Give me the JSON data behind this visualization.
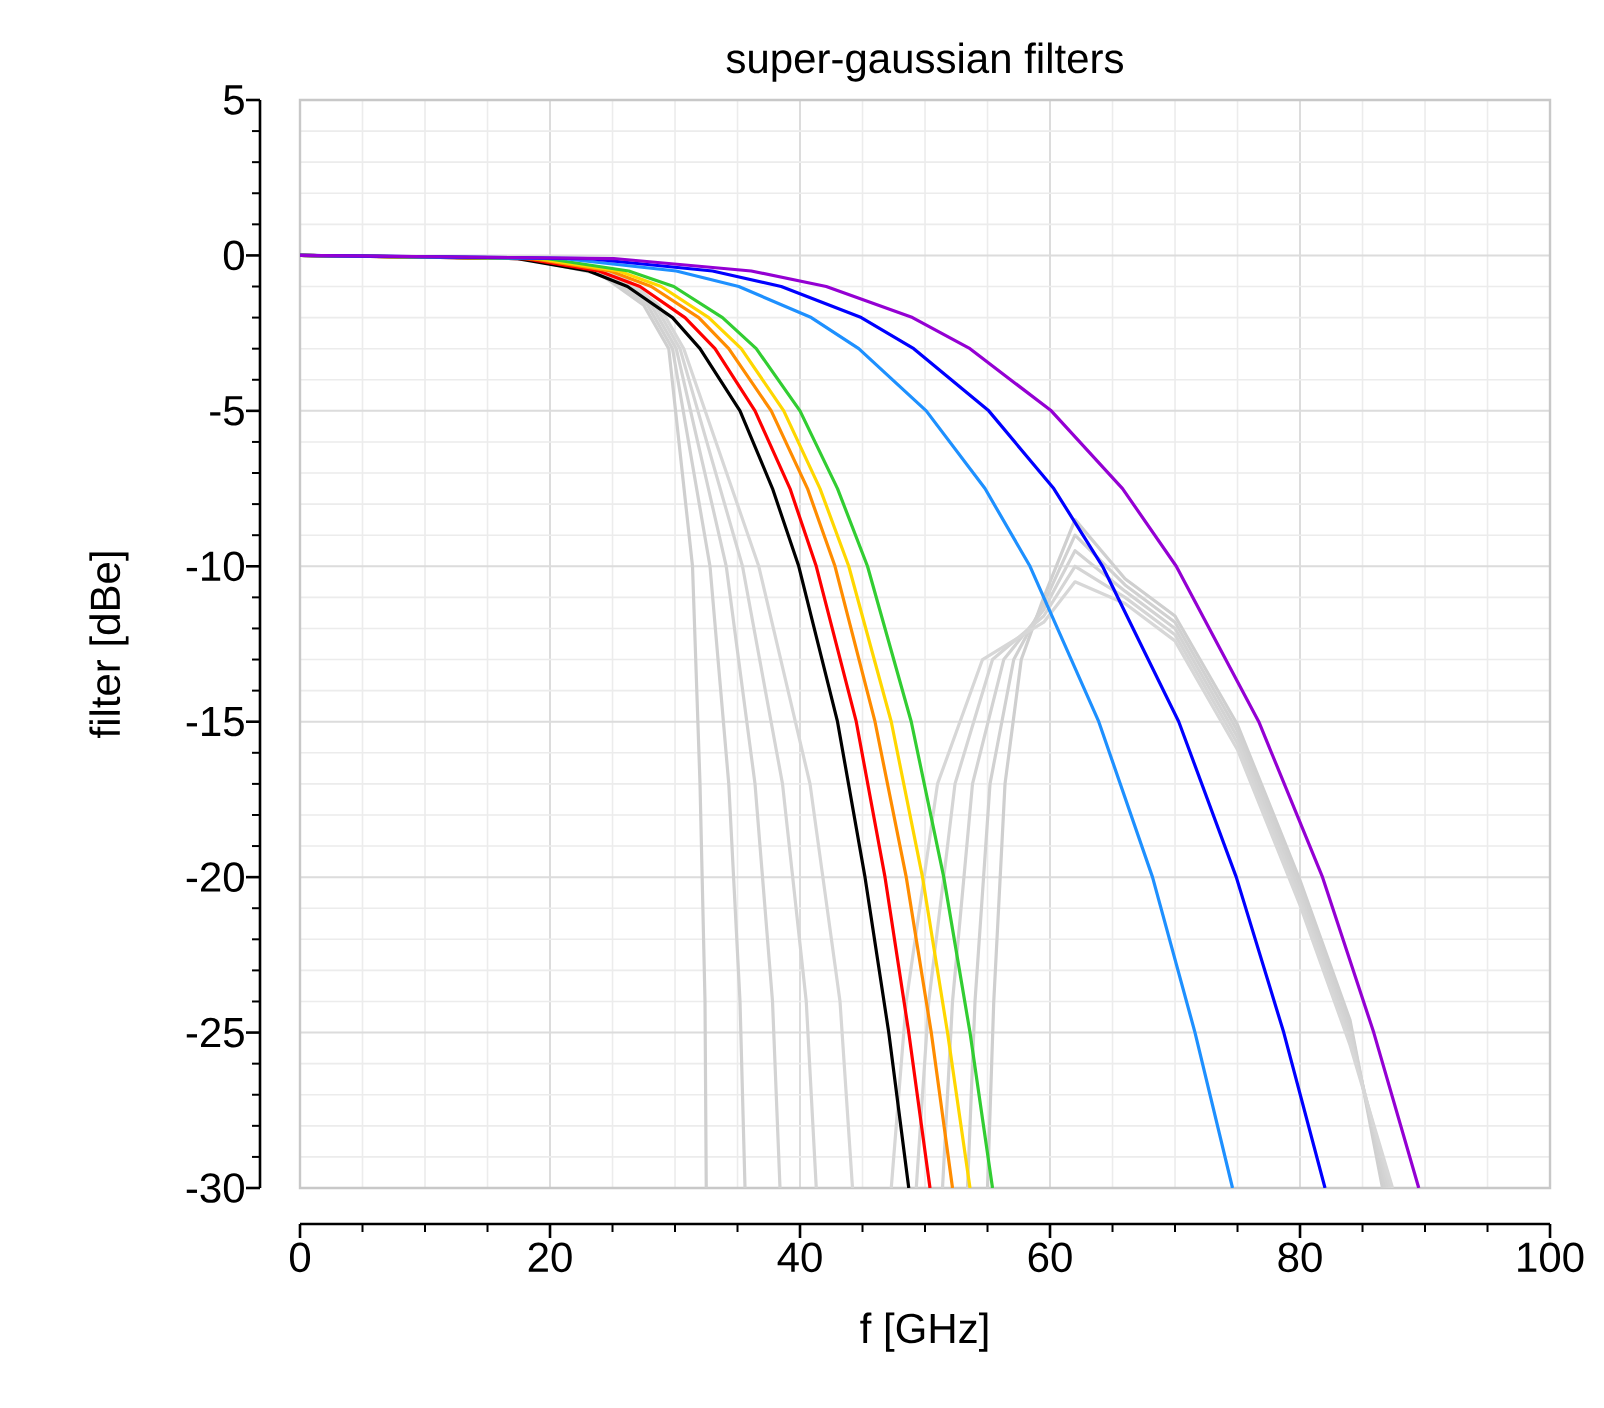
{
  "chart_data": {
    "type": "line",
    "title": "super-gaussian filters",
    "xlabel": "f [GHz]",
    "ylabel": "filter [dBe]",
    "xlim": [
      0,
      100
    ],
    "ylim": [
      -30,
      5
    ],
    "xticks": [
      0,
      20,
      40,
      60,
      80,
      100
    ],
    "yticks": [
      -30,
      -25,
      -20,
      -15,
      -10,
      -5,
      0,
      5
    ],
    "grid": true,
    "line_style": "solid",
    "marker": "none",
    "series": [
      {
        "color": "#cfcfcf",
        "x": [
          0,
          18,
          24,
          27.5,
          29.5,
          31.4,
          32.0,
          32.4,
          32.5,
          44,
          55.0,
          55.5,
          56.4,
          57.7,
          59.5,
          62,
          66,
          70,
          75,
          80,
          84,
          86.6
        ],
        "values": [
          0,
          -0.1,
          -0.6,
          -1.6,
          -3,
          -10,
          -17,
          -24,
          -30,
          null,
          -30,
          -24,
          -17,
          -13,
          -11,
          -8.5,
          -10.4,
          -11.6,
          -15.1,
          -20.1,
          -24.6,
          -30
        ]
      },
      {
        "color": "#d1d1d1",
        "x": [
          0,
          18.5,
          24.4,
          27.8,
          29.8,
          32.8,
          34.3,
          35.2,
          35.6,
          44,
          53.4,
          54.0,
          55.2,
          57.1,
          59.5,
          62,
          66,
          70,
          75,
          80,
          84,
          86.8
        ],
        "values": [
          0,
          -0.1,
          -0.6,
          -1.6,
          -3,
          -10,
          -17,
          -24,
          -30,
          null,
          -30,
          -24,
          -17,
          -13,
          -11.2,
          -9,
          -10.6,
          -11.8,
          -15.3,
          -20.3,
          -24.8,
          -30
        ]
      },
      {
        "color": "#d3d3d3",
        "x": [
          0,
          19,
          24.8,
          28.1,
          30.1,
          34.1,
          36.4,
          37.8,
          38.4,
          44,
          51.4,
          52.2,
          53.8,
          56.3,
          59.5,
          62,
          66,
          70,
          75,
          80,
          84,
          87
        ],
        "values": [
          0,
          -0.1,
          -0.6,
          -1.6,
          -3,
          -10,
          -17,
          -24,
          -30,
          null,
          -30,
          -24,
          -17,
          -13,
          -11.4,
          -9.5,
          -10.8,
          -12,
          -15.5,
          -20.5,
          -25,
          -30
        ]
      },
      {
        "color": "#d5d5d5",
        "x": [
          0,
          19.5,
          25.2,
          28.4,
          30.4,
          35.4,
          38.6,
          40.5,
          41.3,
          45,
          49.3,
          50.3,
          52.4,
          55.4,
          59.5,
          62,
          66,
          70,
          75,
          80,
          84,
          87.2
        ],
        "values": [
          0,
          -0.1,
          -0.6,
          -1.6,
          -3,
          -10,
          -17,
          -24,
          -30,
          null,
          -30,
          -24,
          -17,
          -13,
          -11.6,
          -10,
          -11,
          -12.2,
          -15.7,
          -20.7,
          -25.2,
          -30
        ]
      },
      {
        "color": "#d7d7d7",
        "x": [
          0,
          20,
          25.6,
          28.7,
          30.7,
          36.7,
          40.8,
          43.2,
          44.2,
          46,
          47.3,
          48.5,
          51.0,
          54.6,
          59.5,
          62,
          66,
          70,
          75,
          80,
          84,
          87.4
        ],
        "values": [
          0,
          -0.1,
          -0.6,
          -1.6,
          -3,
          -10,
          -17,
          -24,
          -30,
          null,
          -30,
          -24,
          -17,
          -13,
          -11.8,
          -10.5,
          -11.2,
          -12.4,
          -15.9,
          -20.9,
          -25.4,
          -30
        ]
      },
      {
        "color": "#000000",
        "x": [
          0,
          17.3,
          23.1,
          26.2,
          29.8,
          32.0,
          35.2,
          37.8,
          39.9,
          43.0,
          45.2,
          47.1,
          48.7
        ],
        "values": [
          0,
          -0.1,
          -0.5,
          -1,
          -2,
          -3,
          -5,
          -7.5,
          -10,
          -15,
          -20,
          -25,
          -30
        ]
      },
      {
        "color": "#ff0000",
        "x": [
          0,
          17.9,
          23.9,
          27.2,
          30.8,
          33.2,
          36.4,
          39.2,
          41.3,
          44.5,
          46.8,
          48.7,
          50.4
        ],
        "values": [
          0,
          -0.1,
          -0.5,
          -1,
          -2,
          -3,
          -5,
          -7.5,
          -10,
          -15,
          -20,
          -25,
          -30
        ]
      },
      {
        "color": "#ff8c00",
        "x": [
          0,
          18.5,
          24.8,
          28.1,
          31.9,
          34.3,
          37.7,
          40.6,
          42.8,
          46.0,
          48.5,
          50.5,
          52.2
        ],
        "values": [
          0,
          -0.1,
          -0.5,
          -1,
          -2,
          -3,
          -5,
          -7.5,
          -10,
          -15,
          -20,
          -25,
          -30
        ]
      },
      {
        "color": "#ffd700",
        "x": [
          0,
          19.0,
          25.5,
          28.9,
          32.7,
          35.3,
          38.7,
          41.6,
          43.9,
          47.3,
          49.8,
          51.8,
          53.6
        ],
        "values": [
          0,
          -0.1,
          -0.5,
          -1,
          -2,
          -3,
          -5,
          -7.5,
          -10,
          -15,
          -20,
          -25,
          -30
        ]
      },
      {
        "color": "#32cd32",
        "x": [
          0,
          19.7,
          26.3,
          29.9,
          33.8,
          36.5,
          40.0,
          43.0,
          45.4,
          48.9,
          51.5,
          53.6,
          55.4
        ],
        "values": [
          0,
          -0.1,
          -0.5,
          -1,
          -2,
          -3,
          -5,
          -7.5,
          -10,
          -15,
          -20,
          -25,
          -30
        ]
      },
      {
        "color": "#1e90ff",
        "x": [
          0,
          21.0,
          30.1,
          35.1,
          40.9,
          44.7,
          50.1,
          54.8,
          58.4,
          63.9,
          68.2,
          71.6,
          74.6
        ],
        "values": [
          0,
          -0.1,
          -0.5,
          -1,
          -2,
          -3,
          -5,
          -7.5,
          -10,
          -15,
          -20,
          -25,
          -30
        ]
      },
      {
        "color": "#0000ff",
        "x": [
          0,
          23.0,
          33.0,
          38.5,
          44.9,
          49.1,
          55.1,
          60.3,
          64.2,
          70.3,
          74.9,
          78.7,
          82.0
        ],
        "values": [
          0,
          -0.1,
          -0.5,
          -1,
          -2,
          -3,
          -5,
          -7.5,
          -10,
          -15,
          -20,
          -25,
          -30
        ]
      },
      {
        "color": "#9400d3",
        "x": [
          0,
          25.1,
          36.1,
          42.1,
          49.0,
          53.6,
          60.1,
          65.8,
          70.1,
          76.7,
          81.8,
          85.9,
          89.5
        ],
        "values": [
          0,
          -0.1,
          -0.5,
          -1,
          -2,
          -3,
          -5,
          -7.5,
          -10,
          -15,
          -20,
          -25,
          -30
        ]
      }
    ]
  }
}
